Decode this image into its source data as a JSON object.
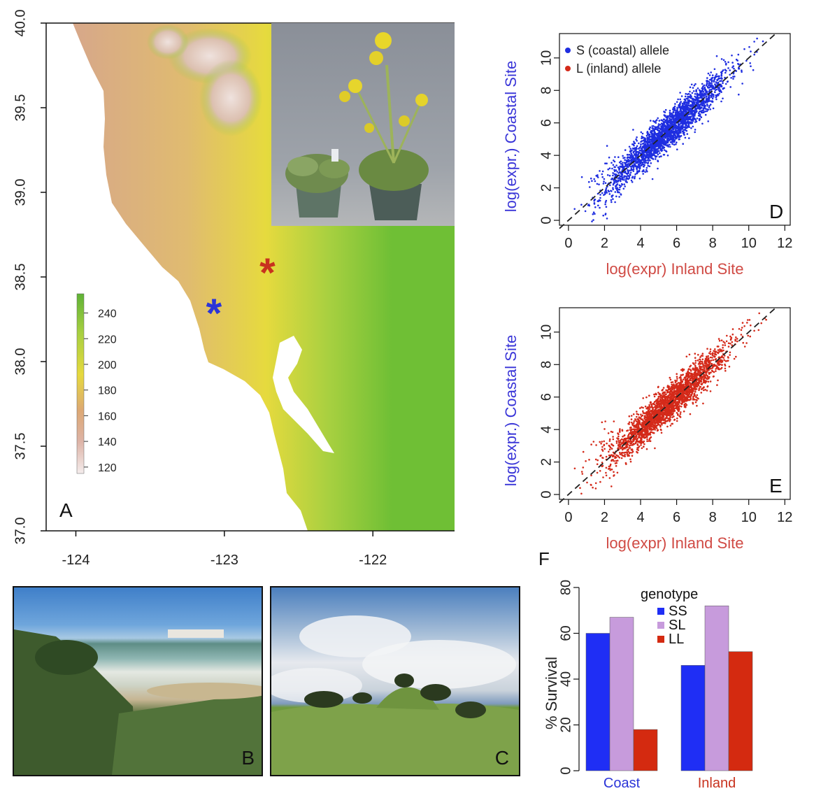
{
  "panel_a": {
    "letter": "A",
    "y_ticks": [
      "40.0",
      "39.5",
      "39.0",
      "38.5",
      "38.0",
      "37.5",
      "37.0"
    ],
    "x_ticks": [
      "-124",
      "-123",
      "-122"
    ],
    "xlim": [
      -124.2,
      -121.45
    ],
    "ylim": [
      37.0,
      40.0
    ],
    "colorbar": {
      "ticks": [
        "240",
        "220",
        "200",
        "180",
        "160",
        "140",
        "120"
      ],
      "range": [
        115,
        255
      ]
    },
    "markers": [
      {
        "name": "coastal-site",
        "symbol": "*",
        "color": "#2b35d8",
        "lon": -123.07,
        "lat": 38.31
      },
      {
        "name": "inland-site",
        "symbol": "*",
        "color": "#c8321e",
        "lon": -122.71,
        "lat": 38.55
      }
    ]
  },
  "panel_b": {
    "letter": "B"
  },
  "panel_c": {
    "letter": "C"
  },
  "chart_data": [
    {
      "panel": "D",
      "type": "scatter",
      "xlabel": "log(expr) Inland Site",
      "ylabel": "log(expr.) Coastal Site",
      "xlim": [
        -0.5,
        12.3
      ],
      "ylim": [
        -0.3,
        11.5
      ],
      "x_ticks": [
        0,
        2,
        4,
        6,
        8,
        10,
        12
      ],
      "y_ticks": [
        0,
        2,
        4,
        6,
        8,
        10
      ],
      "legend": {
        "position": "top-left",
        "entries": [
          {
            "label": "S (coastal) allele",
            "color": "#1f2ee0"
          },
          {
            "label": "L (inland) allele",
            "color": "#d42a1a"
          }
        ]
      },
      "series": [
        {
          "values_summary": "dense cloud along y=x, x 0.5-11.5, y 0-11, spread ~0.6",
          "color": "#1f2ee0"
        }
      ],
      "reference_line": {
        "slope": 1,
        "intercept": 0,
        "style": "dashed"
      }
    },
    {
      "panel": "E",
      "type": "scatter",
      "xlabel": "log(expr) Inland Site",
      "ylabel": "log(expr.) Coastal Site",
      "xlim": [
        -0.5,
        12.3
      ],
      "ylim": [
        -0.3,
        11.5
      ],
      "x_ticks": [
        0,
        2,
        4,
        6,
        8,
        10,
        12
      ],
      "y_ticks": [
        0,
        2,
        4,
        6,
        8,
        10
      ],
      "series": [
        {
          "values_summary": "dense cloud along y=x with raised tail at low x (y~2-4 for x 0-3)",
          "color": "#d42a1a"
        }
      ],
      "reference_line": {
        "slope": 1,
        "intercept": 0,
        "style": "dashed"
      }
    },
    {
      "panel": "F",
      "type": "bar",
      "ylabel": "% Survival",
      "ylim": [
        0,
        80
      ],
      "y_ticks": [
        0,
        20,
        40,
        60,
        80
      ],
      "categories": [
        "Coast",
        "Inland"
      ],
      "category_colors": [
        "#2b35d8",
        "#c8321e"
      ],
      "legend": {
        "title": "genotype",
        "position": "top-right",
        "entries": [
          {
            "label": "SS",
            "color": "#1f2ef5"
          },
          {
            "label": "SL",
            "color": "#c79bdc"
          },
          {
            "label": "LL",
            "color": "#d42a10"
          }
        ]
      },
      "series": [
        {
          "name": "SS",
          "values": [
            60,
            46
          ],
          "color": "#1f2ef5"
        },
        {
          "name": "SL",
          "values": [
            67,
            72
          ],
          "color": "#c79bdc"
        },
        {
          "name": "LL",
          "values": [
            18,
            52
          ],
          "color": "#d42a10"
        }
      ]
    }
  ]
}
